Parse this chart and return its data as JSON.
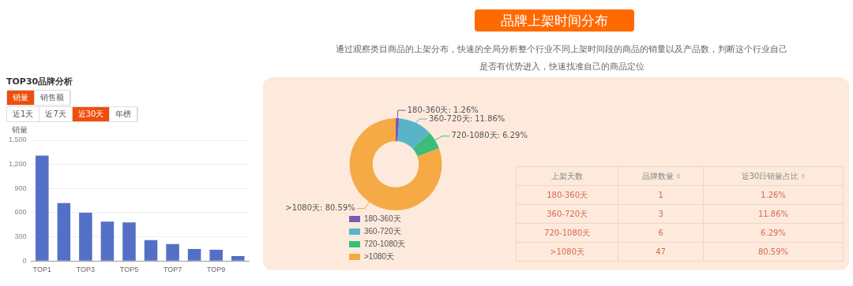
{
  "chart_data": [
    {
      "type": "bar",
      "title": "TOP30品牌分析",
      "ylabel": "销量",
      "annotations": [
        "销量",
        "销售额",
        "近1天",
        "近7天",
        "近30天",
        "年榜"
      ],
      "categories": [
        "TOP1",
        null,
        "TOP3",
        null,
        "TOP5",
        null,
        "TOP7",
        null,
        "TOP9",
        null
      ],
      "values": [
        1310,
        720,
        600,
        490,
        480,
        260,
        210,
        150,
        140,
        60
      ],
      "color": "#5470c6",
      "ylim": [
        0,
        1500
      ],
      "yticks": [
        0,
        300,
        600,
        900,
        {
          "value": 1200,
          "label": "1,200"
        },
        {
          "value": 1500,
          "label": "1,500"
        }
      ],
      "grid": "y",
      "legend": false
    },
    {
      "type": "donut",
      "title": "品牌上架时间分布",
      "subtitle": "通过观察类目商品的上架分布，快速的全局分析整个行业不同上架时间段的商品的销量以及产品数，判断这个行业自己是否有优势进入，快速找准自己的商品定位",
      "categories": [
        "180-360天",
        "360-720天",
        "720-1080天",
        ">1080天"
      ],
      "values": [
        1.26,
        11.86,
        6.29,
        80.59
      ],
      "colors": [
        "#7b5bb5",
        "#5ab4c9",
        "#3cbd78",
        "#f6aa45"
      ],
      "value_labels": [
        "180-360天: 1.26%",
        "360-720天: 11.86%",
        "720-1080天: 6.29%",
        ">1080天: 80.59%"
      ],
      "legend": "bottom"
    },
    {
      "type": "other",
      "annotations": [
        "上架天数",
        "品牌数量",
        "近30日销量占比",
        "180-360天",
        "1",
        "1.26%",
        "360-720天",
        "3",
        "11.86%",
        "720-1080天",
        "6",
        "6.29%",
        ">1080天",
        "47",
        "80.59%"
      ]
    }
  ]
}
